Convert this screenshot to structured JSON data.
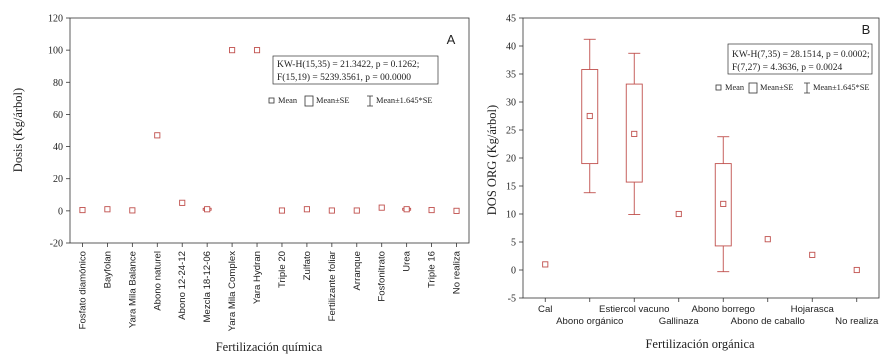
{
  "chart_data": [
    {
      "type": "box",
      "panel_label": "A",
      "xlabel": "Fertilización química",
      "ylabel": "Dosis (Kg/árbol)",
      "ylim": [
        -20,
        120
      ],
      "yticks": [
        -20,
        0,
        20,
        40,
        60,
        80,
        100,
        120
      ],
      "grid": false,
      "categories": [
        "Fosfato diamónico",
        "Bayfolan",
        "Yara Mila Balance",
        "Abono naturel",
        "Abono 12-24-12",
        "Mezcla 18-12-06",
        "Yara Mila Complex",
        "Yara Hydran",
        "Triple 20",
        "Zulfato",
        "Fertilizante foliar",
        "Arranque",
        "Fosfonitrato",
        "Urea",
        "Triple 16",
        "No realiza"
      ],
      "series": [
        {
          "name": "Mean",
          "values": [
            0.5,
            1,
            0.3,
            47,
            5,
            1,
            100,
            100,
            0.2,
            1,
            0.2,
            0.2,
            2,
            1,
            0.5,
            0
          ]
        },
        {
          "name": "Mean±SE",
          "low": [
            0.5,
            1,
            0.3,
            47,
            5,
            0.4,
            100,
            100,
            0.2,
            1,
            0.2,
            0.2,
            2,
            0.4,
            0.5,
            0
          ],
          "high": [
            0.5,
            1,
            0.3,
            47,
            5,
            1.6,
            100,
            100,
            0.2,
            1,
            0.2,
            0.2,
            2,
            1.6,
            0.5,
            0
          ]
        },
        {
          "name": "Mean±1.645*SE",
          "low": [
            0.5,
            1,
            0.3,
            47,
            5,
            0,
            100,
            100,
            0.2,
            1,
            0.2,
            0.2,
            2,
            0,
            0.5,
            0
          ],
          "high": [
            0.5,
            1,
            0.3,
            47,
            5,
            2,
            100,
            100,
            0.2,
            1,
            0.2,
            0.2,
            2,
            2,
            0.5,
            0
          ]
        }
      ],
      "stats_lines": [
        "KW-H(15,35) = 21.3422, p = 0.1262;",
        "F(15,19) = 5239.3561, p = 00.0000"
      ],
      "legend": {
        "placement": "upper-right",
        "items": [
          "Mean",
          "Mean±SE",
          "Mean±1.645*SE"
        ]
      }
    },
    {
      "type": "box",
      "panel_label": "B",
      "xlabel": "Fertilización orgánica",
      "ylabel": "DOS ORG (Kg/árbol)",
      "ylim": [
        -5,
        45
      ],
      "yticks": [
        -5,
        0,
        5,
        10,
        15,
        20,
        25,
        30,
        35,
        40,
        45
      ],
      "grid": false,
      "categories": [
        "Cal",
        "Abono orgánico",
        "Estiercol vacuno",
        "Gallinaza",
        "Abono borrego",
        "Abono de caballo",
        "Hojarasca",
        "No realiza"
      ],
      "series": [
        {
          "name": "Mean",
          "values": [
            1,
            27.5,
            24.3,
            10,
            11.8,
            5.5,
            2.7,
            0
          ]
        },
        {
          "name": "Mean±SE",
          "low": [
            1,
            19,
            15.7,
            10,
            4.3,
            5.5,
            2.7,
            0
          ],
          "high": [
            1,
            35.8,
            33.2,
            10,
            19,
            5.5,
            2.7,
            0
          ]
        },
        {
          "name": "Mean±1.645*SE",
          "low": [
            1,
            13.8,
            9.9,
            10,
            -0.3,
            5.5,
            2.7,
            0
          ],
          "high": [
            1,
            41.2,
            38.7,
            10,
            23.8,
            5.5,
            2.7,
            0
          ]
        }
      ],
      "stats_lines": [
        "KW-H(7,35) = 28.1514, p = 0.0002;",
        "F(7,27) = 4.3636, p = 0.0024"
      ],
      "legend": {
        "placement": "upper-right",
        "items": [
          "Mean",
          "Mean±SE",
          "Mean±1.645*SE"
        ]
      }
    }
  ],
  "colors": {
    "mark": "#c0504d",
    "axis": "#333333",
    "text": "#222222"
  }
}
